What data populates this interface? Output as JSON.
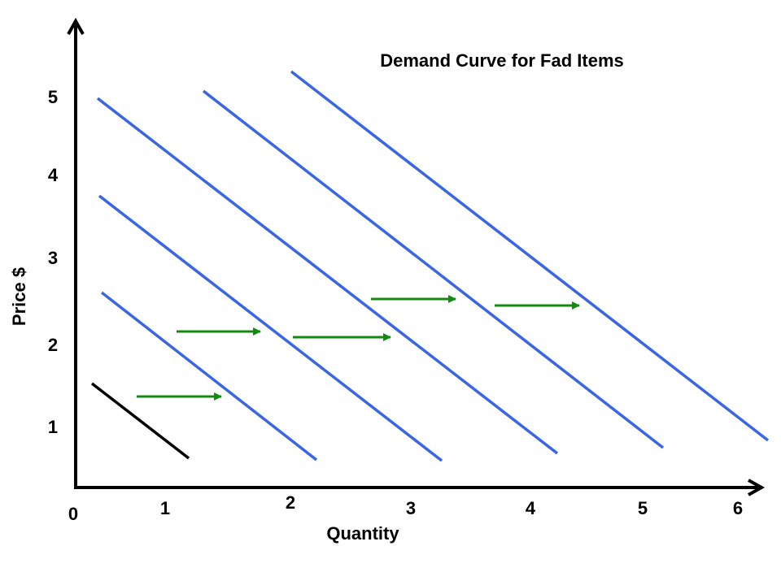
{
  "title": "Demand Curve for Fad Items",
  "axes": {
    "y_label": "Price $",
    "x_label": "Quantity",
    "origin": "0",
    "x_ticks": [
      "1",
      "2",
      "3",
      "4",
      "5",
      "6"
    ],
    "y_ticks": [
      "5",
      "4",
      "3",
      "2",
      "1"
    ]
  }
}
